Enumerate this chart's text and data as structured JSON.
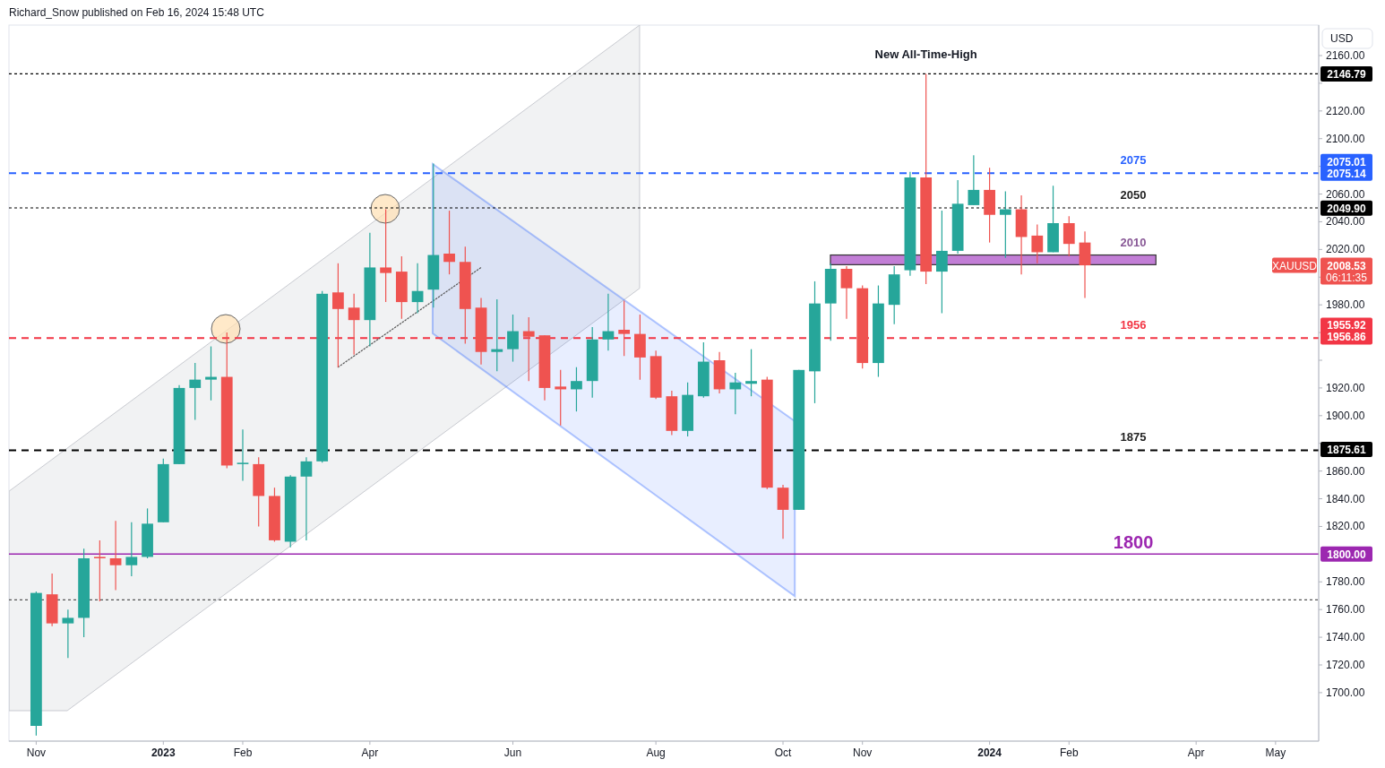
{
  "chart_data": {
    "type": "candlestick",
    "title": "Richard_Snow published on Feb 16, 2024 15:48 UTC",
    "ylabel": "USD",
    "x": [
      "2022-11-07",
      "2022-11-14",
      "2022-11-21",
      "2022-11-28",
      "2022-12-05",
      "2022-12-12",
      "2022-12-19",
      "2022-12-26",
      "2023-01-02",
      "2023-01-09",
      "2023-01-16",
      "2023-01-23",
      "2023-01-30",
      "2023-02-06",
      "2023-02-13",
      "2023-02-20",
      "2023-02-27",
      "2023-03-06",
      "2023-03-13",
      "2023-03-20",
      "2023-03-27",
      "2023-04-03",
      "2023-04-10",
      "2023-04-17",
      "2023-04-24",
      "2023-05-01",
      "2023-05-08",
      "2023-05-15",
      "2023-05-22",
      "2023-05-29",
      "2023-06-05",
      "2023-06-12",
      "2023-06-19",
      "2023-06-26",
      "2023-07-03",
      "2023-07-10",
      "2023-07-17",
      "2023-07-24",
      "2023-07-31",
      "2023-08-07",
      "2023-08-14",
      "2023-08-21",
      "2023-08-28",
      "2023-09-04",
      "2023-09-11",
      "2023-09-18",
      "2023-09-25",
      "2023-10-02",
      "2023-10-09",
      "2023-10-16",
      "2023-10-23",
      "2023-10-30",
      "2023-11-06",
      "2023-11-13",
      "2023-11-20",
      "2023-11-27",
      "2023-12-04",
      "2023-12-11",
      "2023-12-18",
      "2023-12-25",
      "2024-01-01",
      "2024-01-08",
      "2024-01-15",
      "2024-01-22",
      "2024-01-29",
      "2024-02-05",
      "2024-02-12"
    ],
    "ohlc": [
      [
        1676,
        1773,
        1669,
        1772
      ],
      [
        1771,
        1786,
        1748,
        1750
      ],
      [
        1750,
        1760,
        1725,
        1754
      ],
      [
        1754,
        1804,
        1740,
        1797
      ],
      [
        1798,
        1810,
        1766,
        1797
      ],
      [
        1797,
        1824,
        1774,
        1792
      ],
      [
        1792,
        1823,
        1784,
        1798
      ],
      [
        1798,
        1833,
        1797,
        1822
      ],
      [
        1823,
        1869,
        1823,
        1865
      ],
      [
        1865,
        1922,
        1865,
        1920
      ],
      [
        1920,
        1938,
        1897,
        1926
      ],
      [
        1926,
        1950,
        1911,
        1928
      ],
      [
        1928,
        1960,
        1862,
        1864
      ],
      [
        1865,
        1890,
        1853,
        1866
      ],
      [
        1865,
        1870,
        1820,
        1842
      ],
      [
        1842,
        1848,
        1809,
        1810
      ],
      [
        1809,
        1857,
        1805,
        1856
      ],
      [
        1856,
        1870,
        1810,
        1867
      ],
      [
        1867,
        1990,
        1866,
        1988
      ],
      [
        1989,
        2010,
        1935,
        1977
      ],
      [
        1978,
        1988,
        1944,
        1969
      ],
      [
        1969,
        2032,
        1950,
        2007
      ],
      [
        2007,
        2049,
        1982,
        2003
      ],
      [
        2004,
        2015,
        1970,
        1982
      ],
      [
        1982,
        2010,
        1974,
        1990
      ],
      [
        1991,
        2082,
        1978,
        2016
      ],
      [
        2017,
        2048,
        2002,
        2011
      ],
      [
        2011,
        2022,
        1952,
        1977
      ],
      [
        1978,
        1985,
        1937,
        1946
      ],
      [
        1946,
        1984,
        1932,
        1948
      ],
      [
        1948,
        1973,
        1939,
        1961
      ],
      [
        1961,
        1971,
        1925,
        1957
      ],
      [
        1958,
        1958,
        1911,
        1920
      ],
      [
        1921,
        1933,
        1893,
        1919
      ],
      [
        1919,
        1935,
        1903,
        1925
      ],
      [
        1925,
        1964,
        1913,
        1955
      ],
      [
        1955,
        1988,
        1947,
        1961
      ],
      [
        1962,
        1983,
        1943,
        1959
      ],
      [
        1959,
        1973,
        1926,
        1942
      ],
      [
        1943,
        1947,
        1912,
        1913
      ],
      [
        1914,
        1918,
        1886,
        1889
      ],
      [
        1889,
        1924,
        1885,
        1915
      ],
      [
        1914,
        1953,
        1913,
        1939
      ],
      [
        1940,
        1946,
        1916,
        1919
      ],
      [
        1919,
        1931,
        1901,
        1924
      ],
      [
        1923,
        1948,
        1914,
        1925
      ],
      [
        1926,
        1928,
        1847,
        1848
      ],
      [
        1848,
        1850,
        1811,
        1832
      ],
      [
        1832,
        1933,
        1832,
        1933
      ],
      [
        1932,
        1997,
        1909,
        1981
      ],
      [
        1981,
        2010,
        1954,
        2006
      ],
      [
        2006,
        2008,
        1970,
        1992
      ],
      [
        1992,
        1994,
        1934,
        1938
      ],
      [
        1938,
        1994,
        1928,
        1981
      ],
      [
        1980,
        2008,
        1966,
        2002
      ],
      [
        2005,
        2076,
        2001,
        2072
      ],
      [
        2072,
        2146.79,
        1995,
        2004
      ],
      [
        2004,
        2048,
        1974,
        2019
      ],
      [
        2019,
        2070,
        2017,
        2053
      ],
      [
        2052,
        2088,
        2052,
        2063
      ],
      [
        2063,
        2079,
        2025,
        2045
      ],
      [
        2045,
        2062,
        2014,
        2049
      ],
      [
        2049,
        2059,
        2002,
        2029
      ],
      [
        2030,
        2038,
        2010,
        2018
      ],
      [
        2018,
        2066,
        2018,
        2039
      ],
      [
        2039,
        2044,
        2015,
        2024
      ],
      [
        2025,
        2033,
        1985,
        2008.53
      ]
    ],
    "xlim": [
      "2022-10-26",
      "2024-05-25"
    ],
    "xticks": [
      {
        "value": "2022-11-07",
        "label": "Nov"
      },
      {
        "value": "2023-01-02",
        "label": "2023"
      },
      {
        "value": "2023-02-06",
        "label": "Feb"
      },
      {
        "value": "2023-04-03",
        "label": "Apr"
      },
      {
        "value": "2023-06-05",
        "label": "Jun"
      },
      {
        "value": "2023-08-07",
        "label": "Aug"
      },
      {
        "value": "2023-10-02",
        "label": "Oct"
      },
      {
        "value": "2023-11-06",
        "label": "Nov"
      },
      {
        "value": "2024-01-01",
        "label": "2024"
      },
      {
        "value": "2024-02-05",
        "label": "Feb"
      },
      {
        "value": "2024-04-01",
        "label": "Apr"
      },
      {
        "value": "2024-05-06",
        "label": "May"
      }
    ],
    "ylim": [
      1665,
      2182
    ],
    "series": [
      {
        "type": "line",
        "x": [
          "2023-03-20",
          "2023-05-22"
        ],
        "values": [
          1935,
          2007
        ],
        "color": "#555555",
        "line_style": "dotted"
      }
    ],
    "yticks": [
      {
        "value": 1700,
        "label": "1700.00"
      },
      {
        "value": 1720,
        "label": "1720.00"
      },
      {
        "value": 1740,
        "label": "1740.00"
      },
      {
        "value": 1760,
        "label": "1760.00"
      },
      {
        "value": 1780,
        "label": "1780.00"
      },
      {
        "value": 1800,
        "label": "1800.00"
      },
      {
        "value": 1820,
        "label": "1820.00"
      },
      {
        "value": 1840,
        "label": "1840.00"
      },
      {
        "value": 1860,
        "label": "1860.00"
      },
      {
        "value": 1875.61,
        "label": "1875.61"
      },
      {
        "value": 1880,
        "label": null
      },
      {
        "value": 1900,
        "label": "1900.00"
      },
      {
        "value": 1920,
        "label": "1920.00"
      },
      {
        "value": 1940,
        "label": null
      },
      {
        "value": 1956.86,
        "label": "1956.86"
      },
      {
        "value": 1960,
        "label": null
      },
      {
        "value": 1980,
        "label": "1980.00"
      },
      {
        "value": 2000,
        "label": null
      },
      {
        "value": 2008.53,
        "label": "2008.53"
      },
      {
        "value": 2020,
        "label": "2020.00"
      },
      {
        "value": 2040,
        "label": "2040.00"
      },
      {
        "value": 2049.9,
        "label": "2049.90"
      },
      {
        "value": 2060,
        "label": "2060.00"
      },
      {
        "value": 2075.14,
        "label": "2075.14"
      },
      {
        "value": 2080,
        "label": null
      },
      {
        "value": 2100,
        "label": "2100.00"
      },
      {
        "value": 2120,
        "label": "2120.00"
      },
      {
        "value": 2140,
        "label": null
      },
      {
        "value": 2146.79,
        "label": "2146.79"
      },
      {
        "value": 2160,
        "label": "2160.00"
      }
    ],
    "ref_lines": [
      {
        "axis": "y",
        "value": 2146.79,
        "color": "#000000",
        "line_style": "dotted"
      },
      {
        "axis": "y",
        "value": 2075,
        "label": "2075",
        "color": "#2962ff",
        "line_style": "dashed"
      },
      {
        "axis": "y",
        "value": 2050,
        "label": "2050",
        "color": "#000000",
        "line_style": "dotted"
      },
      {
        "axis": "y",
        "value": 1956,
        "label": "1956",
        "color": "#f23645",
        "line_style": "dashed"
      },
      {
        "axis": "y",
        "value": 1875,
        "label": "1875",
        "color": "#000000",
        "line_style": "dashed"
      },
      {
        "axis": "y",
        "value": 1800,
        "label": "1800",
        "color": "#9c27b0",
        "line_style": "solid"
      },
      {
        "axis": "y",
        "value": 1767,
        "color": "#555555",
        "line_style": "dotted"
      }
    ],
    "bands": [
      {
        "axis": "y",
        "from": 2009,
        "to": 2016,
        "label": "2010",
        "color": "#c27ed6"
      }
    ],
    "annotations": [
      {
        "text": "New All-Time-High",
        "x": "2023-12-04",
        "y": 2146.79
      },
      "XAUUSD",
      "06:11:35",
      "2075.01",
      "1955.92"
    ]
  }
}
